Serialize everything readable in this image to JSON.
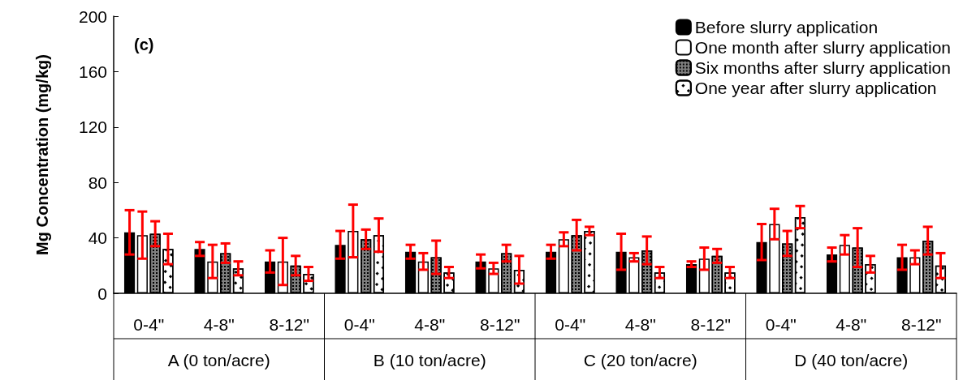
{
  "chart_data": {
    "type": "bar",
    "title": "(c)",
    "ylabel": "Mg Concentration (mg/kg)",
    "categories": [
      "0-4\"",
      "4-8\"",
      "8-12\"",
      "0-4\"",
      "4-8\"",
      "8-12\"",
      "0-4\"",
      "4-8\"",
      "8-12\"",
      "0-4\"",
      "4-8\"",
      "8-12\""
    ],
    "annotations": [
      "A (0 ton/acre)",
      "B (10 ton/acre)",
      "C (20 ton/acre)",
      "D (40 ton/acre)"
    ],
    "series": [
      {
        "name": "Before slurry application",
        "color": "#000000",
        "values": [
          44,
          32,
          23,
          35,
          30,
          23,
          30,
          30,
          21,
          37,
          28,
          26
        ],
        "errors": [
          16,
          5,
          8,
          10,
          5,
          5,
          5,
          13,
          2,
          13,
          5,
          9
        ]
      },
      {
        "name": "One month after slurry application",
        "color": "#ffffff",
        "values": [
          42,
          23,
          23,
          45,
          23,
          18,
          39,
          26,
          25,
          50,
          35,
          26
        ],
        "errors": [
          17,
          12,
          17,
          19,
          6,
          4,
          5,
          3,
          8,
          11,
          7,
          5
        ]
      },
      {
        "name": "Six months after slurry application",
        "color": "#808080",
        "values": [
          43,
          29,
          20,
          39,
          26,
          29,
          42,
          31,
          27,
          36,
          33,
          38
        ],
        "errors": [
          9,
          7,
          7,
          7,
          12,
          6,
          11,
          10,
          5,
          9,
          14,
          10
        ]
      },
      {
        "name": "One year after slurry application",
        "color": "#ffffff",
        "values": [
          32,
          18,
          14,
          42,
          15,
          17,
          45,
          15,
          15,
          55,
          21,
          20
        ],
        "errors": [
          11,
          5,
          5,
          12,
          4,
          10,
          3,
          4,
          4,
          8,
          6,
          9
        ]
      }
    ],
    "ylim": [
      0,
      200
    ],
    "yticks": [
      0,
      40,
      80,
      120,
      160,
      200
    ],
    "grid": false,
    "legend": "top right"
  }
}
